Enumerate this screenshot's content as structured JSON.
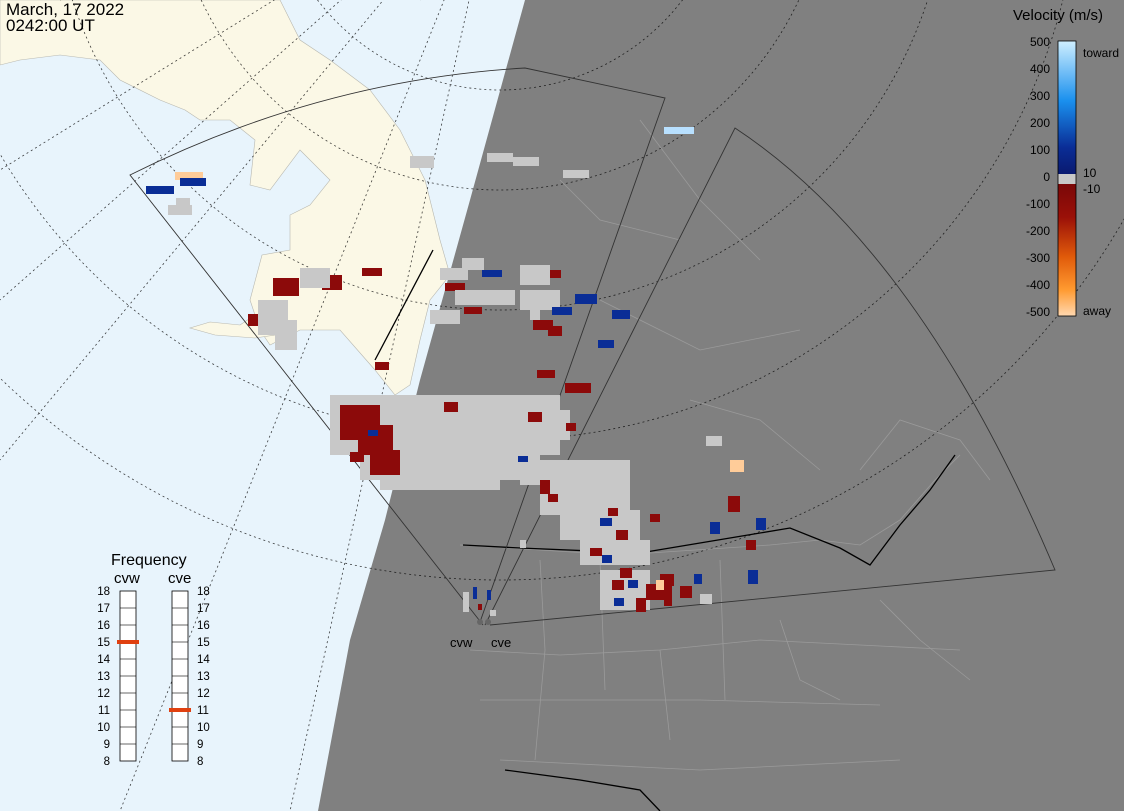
{
  "header": {
    "date": "March, 17 2022",
    "time": "0242:00 UT"
  },
  "colorbar": {
    "title": "Velocity (m/s)",
    "ticks": [
      "500",
      "400",
      "300",
      "200",
      "100",
      "10",
      "0",
      "-10",
      "-100",
      "-200",
      "-300",
      "-400",
      "-500"
    ],
    "tick_values": [
      500,
      400,
      300,
      200,
      100,
      10,
      0,
      -10,
      -100,
      -200,
      -300,
      -400,
      -500
    ],
    "toward_label": "toward",
    "away_label": "away",
    "colors": {
      "toward_max": "#cfefff",
      "toward_mid": "#1a90ee",
      "toward_low": "#0a2d96",
      "near_zero": "#c8c8c8",
      "away_low": "#8c0a0a",
      "away_mid": "#e05a0a",
      "away_max": "#ffd8b0"
    }
  },
  "frequency": {
    "title": "Frequency",
    "radars": [
      {
        "name": "cvw",
        "value": 15
      },
      {
        "name": "cve",
        "value": 11
      }
    ],
    "scale": [
      18,
      17,
      16,
      15,
      14,
      13,
      12,
      11,
      10,
      9,
      8
    ],
    "indicator_color": "#e04010"
  },
  "stations": [
    {
      "name": "cvw"
    },
    {
      "name": "cve"
    }
  ],
  "map": {
    "ocean_color": "#e8f4fc",
    "land_day_color": "#fbf8e6",
    "night_color": "#808080",
    "boundary_color": "#9a9a9a",
    "fov_color": "#333333"
  }
}
